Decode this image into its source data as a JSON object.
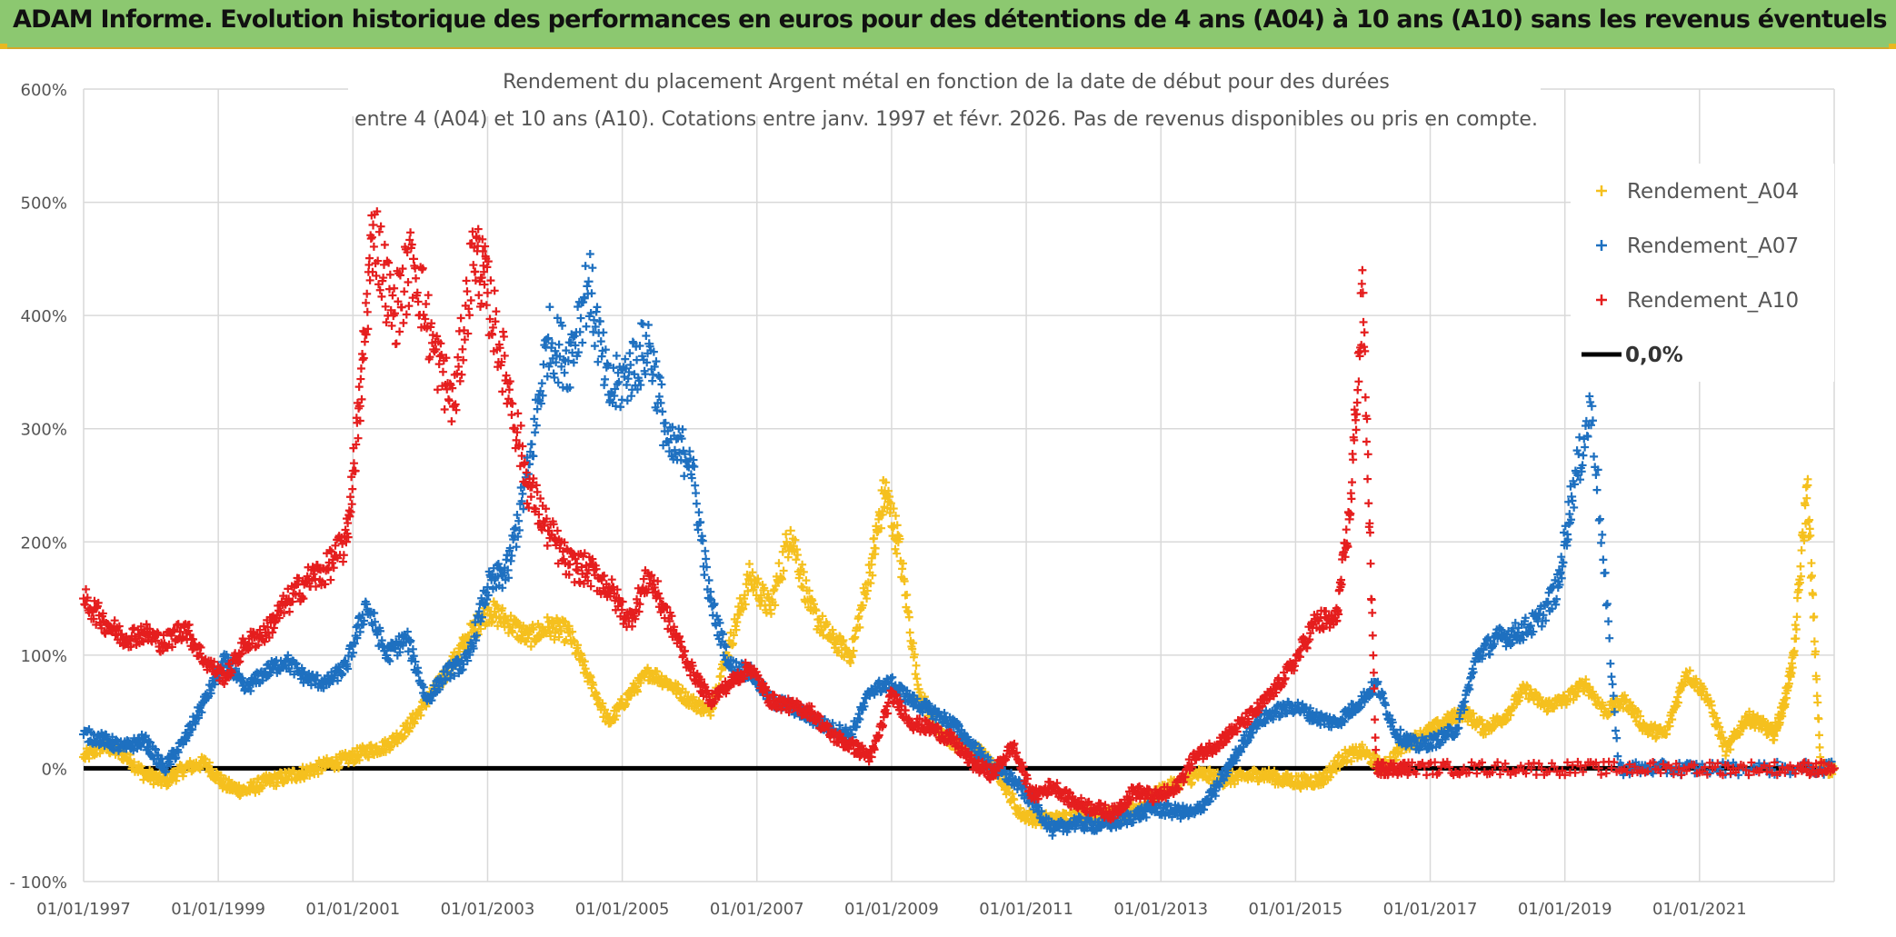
{
  "banner": {
    "title": "ADAM Informe. Evolution historique des performances en euros pour des détentions de 4 ans (A04) à 10 ans (A10) sans les revenus éventuels"
  },
  "chart_data": {
    "type": "scatter",
    "title_line1": "Rendement du placement Argent métal en fonction de la date de début pour des durées",
    "title_line2": "entre 4 (A04) et 10 ans (A10). Cotations entre janv. 1997 et févr. 2026. Pas de revenus disponibles ou pris en compte.",
    "ylim": [
      -100,
      600
    ],
    "yticks": [
      -100,
      0,
      100,
      200,
      300,
      400,
      500,
      600
    ],
    "ytick_labels": [
      "- 100%",
      "0%",
      "100%",
      "200%",
      "300%",
      "400%",
      "500%",
      "600%"
    ],
    "xlim": [
      1997.0,
      2023.0
    ],
    "xticks": [
      1997,
      1999,
      2001,
      2003,
      2005,
      2007,
      2009,
      2011,
      2013,
      2015,
      2017,
      2019,
      2021
    ],
    "xtick_labels": [
      "01/01/1997",
      "01/01/1999",
      "01/01/2001",
      "01/01/2003",
      "01/01/2005",
      "01/01/2007",
      "01/01/2009",
      "01/01/2011",
      "01/01/2013",
      "01/01/2015",
      "01/01/2017",
      "01/01/2019",
      "01/01/2021"
    ],
    "marker": "+",
    "legend_position": "top-right",
    "series": [
      {
        "name": "Rendement_A04",
        "color": "#f5c01e",
        "x": [
          1997.0,
          1997.3,
          1997.6,
          1997.9,
          1998.2,
          1998.5,
          1998.8,
          1999.1,
          1999.4,
          1999.7,
          2000.0,
          2000.3,
          2000.6,
          2000.9,
          2001.2,
          2001.5,
          2001.8,
          2002.1,
          2002.4,
          2002.7,
          2003.0,
          2003.3,
          2003.6,
          2003.9,
          2004.2,
          2004.5,
          2004.8,
          2005.1,
          2005.4,
          2005.7,
          2006.0,
          2006.3,
          2006.6,
          2006.9,
          2007.2,
          2007.5,
          2007.8,
          2008.1,
          2008.4,
          2008.7,
          2008.9,
          2009.1,
          2009.4,
          2009.7,
          2010.0,
          2010.3,
          2010.6,
          2010.9,
          2011.2,
          2011.5,
          2011.8,
          2012.1,
          2012.4,
          2012.7,
          2013.0,
          2013.3,
          2013.6,
          2013.9,
          2014.2,
          2014.5,
          2014.8,
          2015.1,
          2015.4,
          2015.7,
          2016.0,
          2016.3,
          2016.6,
          2016.9,
          2017.2,
          2017.5,
          2017.8,
          2018.1,
          2018.4,
          2018.7,
          2019.0,
          2019.3,
          2019.6,
          2019.9,
          2020.2,
          2020.5,
          2020.8,
          2021.1,
          2021.4,
          2021.7,
          2021.9,
          2022.1,
          2022.25,
          2022.4,
          2022.6,
          2022.8,
          2023.0
        ],
        "values": [
          10,
          20,
          12,
          -5,
          -12,
          0,
          5,
          -15,
          -20,
          -12,
          -8,
          -3,
          3,
          8,
          15,
          20,
          35,
          60,
          85,
          115,
          140,
          130,
          115,
          125,
          120,
          80,
          40,
          65,
          85,
          75,
          60,
          50,
          110,
          170,
          140,
          210,
          140,
          115,
          100,
          180,
          245,
          200,
          70,
          30,
          20,
          15,
          -5,
          -40,
          -45,
          -45,
          -40,
          -42,
          -40,
          -35,
          -20,
          -12,
          -5,
          -10,
          -8,
          -5,
          -10,
          -12,
          -10,
          10,
          15,
          0,
          20,
          30,
          40,
          50,
          35,
          45,
          70,
          55,
          60,
          75,
          50,
          60,
          35,
          30,
          85,
          65,
          15,
          45,
          40,
          30,
          55,
          100,
          250,
          0,
          0
        ]
      },
      {
        "name": "Rendement_A07",
        "color": "#1e70c0",
        "x": [
          1997.0,
          1997.3,
          1997.6,
          1997.9,
          1998.2,
          1998.5,
          1998.8,
          1999.1,
          1999.4,
          1999.7,
          2000.0,
          2000.3,
          2000.6,
          2000.9,
          2001.2,
          2001.5,
          2001.8,
          2002.1,
          2002.4,
          2002.7,
          2003.0,
          2003.3,
          2003.6,
          2003.9,
          2004.2,
          2004.5,
          2004.8,
          2005.1,
          2005.4,
          2005.7,
          2006.0,
          2006.3,
          2006.6,
          2006.9,
          2007.2,
          2007.5,
          2007.8,
          2008.1,
          2008.4,
          2008.7,
          2009.0,
          2009.3,
          2009.6,
          2009.9,
          2010.2,
          2010.5,
          2010.8,
          2011.1,
          2011.4,
          2011.7,
          2012.0,
          2012.3,
          2012.6,
          2012.9,
          2013.2,
          2013.5,
          2013.8,
          2014.1,
          2014.4,
          2014.7,
          2015.0,
          2015.3,
          2015.6,
          2015.9,
          2016.2,
          2016.5,
          2016.8,
          2017.1,
          2017.4,
          2017.7,
          2018.0,
          2018.3,
          2018.6,
          2018.9,
          2019.1,
          2019.4,
          2019.8,
          2020.4,
          2021.0,
          2022.0,
          2023.0
        ],
        "values": [
          30,
          25,
          18,
          25,
          0,
          25,
          60,
          95,
          70,
          85,
          95,
          80,
          75,
          90,
          145,
          100,
          115,
          60,
          85,
          95,
          160,
          175,
          260,
          380,
          360,
          430,
          330,
          350,
          375,
          280,
          280,
          150,
          90,
          85,
          60,
          55,
          45,
          35,
          30,
          70,
          75,
          60,
          50,
          40,
          20,
          0,
          -10,
          -30,
          -55,
          -48,
          -50,
          -48,
          -42,
          -35,
          -38,
          -40,
          -20,
          10,
          40,
          50,
          55,
          45,
          40,
          55,
          75,
          30,
          20,
          25,
          35,
          100,
          115,
          120,
          130,
          160,
          240,
          320,
          0,
          0,
          0,
          0,
          0
        ]
      },
      {
        "name": "Rendement_A10",
        "color": "#e51e1e",
        "x": [
          1997.0,
          1997.3,
          1997.6,
          1997.9,
          1998.2,
          1998.5,
          1998.8,
          1999.1,
          1999.4,
          1999.7,
          2000.0,
          2000.3,
          2000.6,
          2000.9,
          2001.1,
          2001.3,
          2001.6,
          2001.9,
          2002.2,
          2002.5,
          2002.8,
          2003.0,
          2003.3,
          2003.6,
          2003.9,
          2004.2,
          2004.5,
          2004.8,
          2005.1,
          2005.4,
          2005.7,
          2006.0,
          2006.3,
          2006.6,
          2006.9,
          2007.2,
          2007.5,
          2007.8,
          2008.1,
          2008.4,
          2008.7,
          2009.0,
          2009.3,
          2009.6,
          2009.9,
          2010.2,
          2010.5,
          2010.8,
          2011.1,
          2011.4,
          2011.7,
          2012.0,
          2012.3,
          2012.6,
          2012.9,
          2013.2,
          2013.5,
          2013.8,
          2014.1,
          2014.4,
          2014.7,
          2015.0,
          2015.3,
          2015.6,
          2015.8,
          2016.0,
          2016.2,
          2016.4,
          2016.7,
          2017.5,
          2018.5,
          2019.5,
          2020.5,
          2021.5,
          2022.5,
          2023.0
        ],
        "values": [
          150,
          130,
          115,
          120,
          110,
          125,
          95,
          80,
          110,
          120,
          145,
          165,
          175,
          200,
          320,
          480,
          400,
          450,
          370,
          320,
          460,
          420,
          340,
          250,
          210,
          180,
          175,
          160,
          130,
          170,
          130,
          90,
          60,
          75,
          90,
          60,
          55,
          50,
          30,
          20,
          10,
          65,
          40,
          35,
          25,
          5,
          -5,
          20,
          -25,
          -15,
          -30,
          -35,
          -40,
          -20,
          -25,
          -20,
          10,
          20,
          35,
          50,
          70,
          95,
          130,
          130,
          220,
          420,
          0,
          0,
          0,
          0,
          0,
          0,
          0,
          0,
          0,
          0
        ]
      }
    ],
    "reference_line": {
      "name": "0,0%",
      "value": 0,
      "color": "#000000"
    }
  }
}
